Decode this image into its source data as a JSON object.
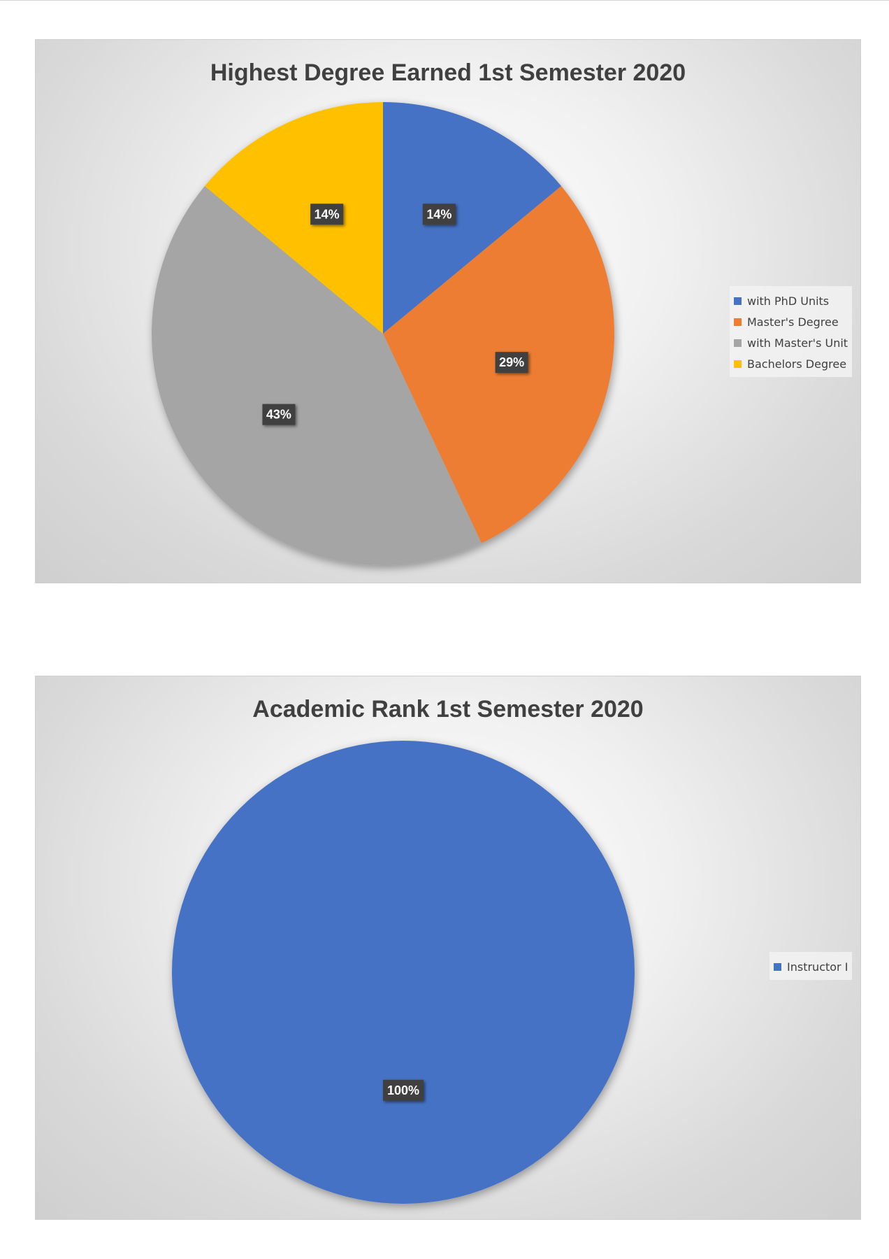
{
  "chart_data": [
    {
      "type": "pie",
      "title": "Highest Degree Earned 1st Semester 2020",
      "categories": [
        "with PhD Units",
        "Master's Degree",
        "with Master's Unit",
        "Bachelors Degree"
      ],
      "values": [
        14,
        29,
        43,
        14
      ],
      "labels": [
        "14%",
        "29%",
        "43%",
        "14%"
      ],
      "colors": [
        "#4472C4",
        "#ED7D31",
        "#A5A5A5",
        "#FFC000"
      ],
      "legend": "right"
    },
    {
      "type": "pie",
      "title": "Academic Rank 1st Semester 2020",
      "categories": [
        "Instructor I"
      ],
      "values": [
        100
      ],
      "labels": [
        "100%"
      ],
      "colors": [
        "#4472C4"
      ],
      "legend": "right"
    }
  ]
}
